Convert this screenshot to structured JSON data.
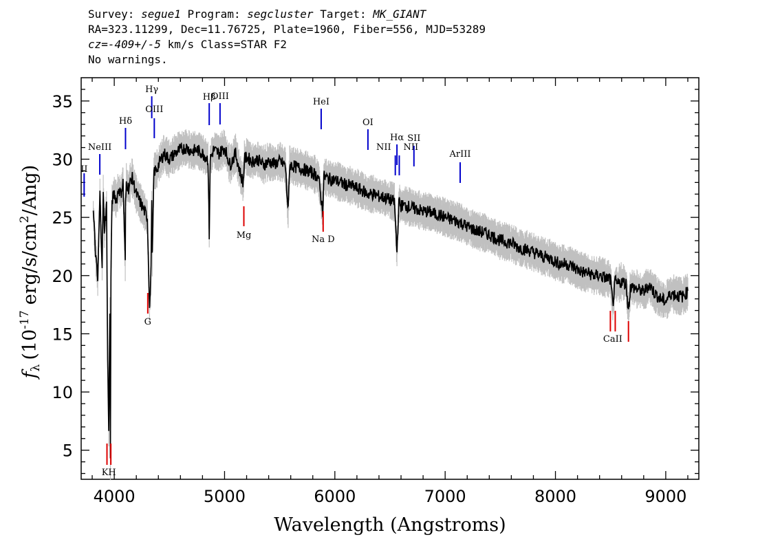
{
  "header": {
    "survey_label": "Survey:",
    "survey": "segue1",
    "program_label": "Program:",
    "program": "segcluster",
    "target_label": "Target:",
    "target": "MK_GIANT",
    "line2": "RA=323.11299, Dec=11.76725, Plate=1960, Fiber=556, MJD=53289",
    "cz": "cz=-409+/-5",
    "line3_rest": "km/s Class=STAR F2",
    "line4": "No warnings."
  },
  "chart_data": {
    "type": "line",
    "xlabel": "Wavelength (Angstroms)",
    "ylabel_symbol": "f",
    "ylabel_sub": "λ",
    "ylabel_text": "(10",
    "ylabel_exp": "-17",
    "ylabel_text2": "erg/s/cm",
    "ylabel_exp2": "2",
    "ylabel_text3": "/Ang)",
    "xlim": [
      3700,
      9300
    ],
    "ylim": [
      2.5,
      37
    ],
    "x_ticks": [
      4000,
      5000,
      6000,
      7000,
      8000,
      9000
    ],
    "y_ticks": [
      5,
      10,
      15,
      20,
      25,
      30,
      35
    ],
    "series": [
      {
        "color": "#000000",
        "x": [
          3810,
          3830,
          3850,
          3870,
          3890,
          3900,
          3910,
          3930,
          3940,
          3950,
          3960,
          3965,
          3970,
          3980,
          4000,
          4020,
          4040,
          4060,
          4080,
          4100,
          4102,
          4110,
          4130,
          4160,
          4200,
          4250,
          4300,
          4320,
          4330,
          4340,
          4345,
          4360,
          4380,
          4400,
          4450,
          4500,
          4550,
          4600,
          4650,
          4700,
          4750,
          4800,
          4850,
          4861,
          4870,
          4900,
          4950,
          5000,
          5050,
          5100,
          5150,
          5170,
          5180,
          5200,
          5250,
          5300,
          5350,
          5400,
          5450,
          5500,
          5550,
          5577,
          5590,
          5600,
          5650,
          5700,
          5750,
          5800,
          5850,
          5890,
          5900,
          5950,
          6000,
          6050,
          6100,
          6150,
          6200,
          6250,
          6300,
          6350,
          6400,
          6450,
          6500,
          6540,
          6563,
          6580,
          6600,
          6650,
          6700,
          6750,
          6800,
          6850,
          6900,
          6950,
          7000,
          7050,
          7100,
          7150,
          7200,
          7250,
          7300,
          7350,
          7400,
          7450,
          7500,
          7550,
          7600,
          7650,
          7700,
          7750,
          7800,
          7850,
          7900,
          7950,
          8000,
          8050,
          8100,
          8150,
          8200,
          8250,
          8300,
          8350,
          8400,
          8450,
          8498,
          8520,
          8542,
          8560,
          8600,
          8640,
          8662,
          8680,
          8700,
          8750,
          8800,
          8850,
          8900,
          8950,
          9000,
          9050,
          9100,
          9150,
          9200
        ],
        "y": [
          25.5,
          22,
          19.5,
          27,
          21,
          27,
          24,
          26,
          13,
          6.5,
          17,
          4,
          20,
          26.5,
          27,
          26.5,
          27.5,
          27,
          28,
          21,
          26,
          28,
          27.5,
          28.5,
          27,
          26,
          25,
          17.5,
          19,
          26,
          21.5,
          29,
          29,
          29.5,
          30.5,
          30,
          30.5,
          30.8,
          31,
          30.7,
          30.8,
          30.5,
          30,
          23.5,
          30,
          30.8,
          30.5,
          31,
          29.5,
          30.5,
          28.5,
          28,
          30,
          30.2,
          29.8,
          30,
          29.5,
          29.8,
          29.6,
          29.8,
          29.5,
          25.5,
          29.5,
          29.5,
          29.3,
          29.2,
          29,
          28.8,
          28.5,
          25.5,
          28.5,
          28.3,
          28.2,
          28,
          27.8,
          27.7,
          27.5,
          27.3,
          27,
          27,
          26.8,
          26.7,
          26.5,
          26.3,
          22,
          26.3,
          26,
          26,
          25.8,
          25.7,
          25.5,
          25.5,
          25.3,
          25.2,
          25,
          24.8,
          24.7,
          24.5,
          24.2,
          24,
          23.8,
          23.7,
          23.5,
          23.3,
          23,
          22.9,
          22.8,
          22.5,
          22.3,
          22.2,
          22,
          21.8,
          21.6,
          21.5,
          21.2,
          21,
          21,
          20.8,
          20.5,
          20.3,
          20.2,
          20,
          20,
          19.8,
          19.7,
          17.5,
          19.5,
          19.2,
          19.5,
          19.3,
          17,
          19,
          19,
          18.8,
          18.6,
          19.2,
          18.5,
          18,
          17.8,
          18.5,
          18.3,
          18.2,
          18.6
        ]
      }
    ],
    "noise_band_color": "#c0c0c0",
    "emission_lines": [
      {
        "label": "II",
        "wavelength": 3727
      },
      {
        "label": "NeIII",
        "wavelength": 3869
      },
      {
        "label": "Hδ",
        "wavelength": 4102
      },
      {
        "label": "Hγ",
        "wavelength": 4340
      },
      {
        "label": "OIII",
        "wavelength": 4363
      },
      {
        "label": "Hβ",
        "wavelength": 4861
      },
      {
        "label": "OIII",
        "wavelength": 4959
      },
      {
        "label": "HeI",
        "wavelength": 5876
      },
      {
        "label": "OI",
        "wavelength": 6300
      },
      {
        "label": "NII",
        "wavelength": 6548
      },
      {
        "label": "Hα",
        "wavelength": 6563
      },
      {
        "label": "NII",
        "wavelength": 6584
      },
      {
        "label": "SII",
        "wavelength": 6717
      },
      {
        "label": "ArIII",
        "wavelength": 7136
      }
    ],
    "emission_color": "#0000cc",
    "absorption_lines": [
      {
        "label": "K",
        "wavelength": 3934
      },
      {
        "label": "H",
        "wavelength": 3969
      },
      {
        "label": "G",
        "wavelength": 4304
      },
      {
        "label": "Mg",
        "wavelength": 5175
      },
      {
        "label": "Na D",
        "wavelength": 5894
      },
      {
        "label": "CaII",
        "wavelength": 8498
      },
      {
        "label": "CaII",
        "wavelength": 8542
      },
      {
        "label": "CaII",
        "wavelength": 8662
      }
    ],
    "absorption_color": "#dd0000",
    "absorption_group_labels": [
      {
        "text": "KH",
        "wavelength": 3951
      },
      {
        "text": "G",
        "wavelength": 4304
      },
      {
        "text": "Mg",
        "wavelength": 5175
      },
      {
        "text": "Na  D",
        "wavelength": 5894
      },
      {
        "text": "CaII",
        "wavelength": 8520
      }
    ]
  }
}
